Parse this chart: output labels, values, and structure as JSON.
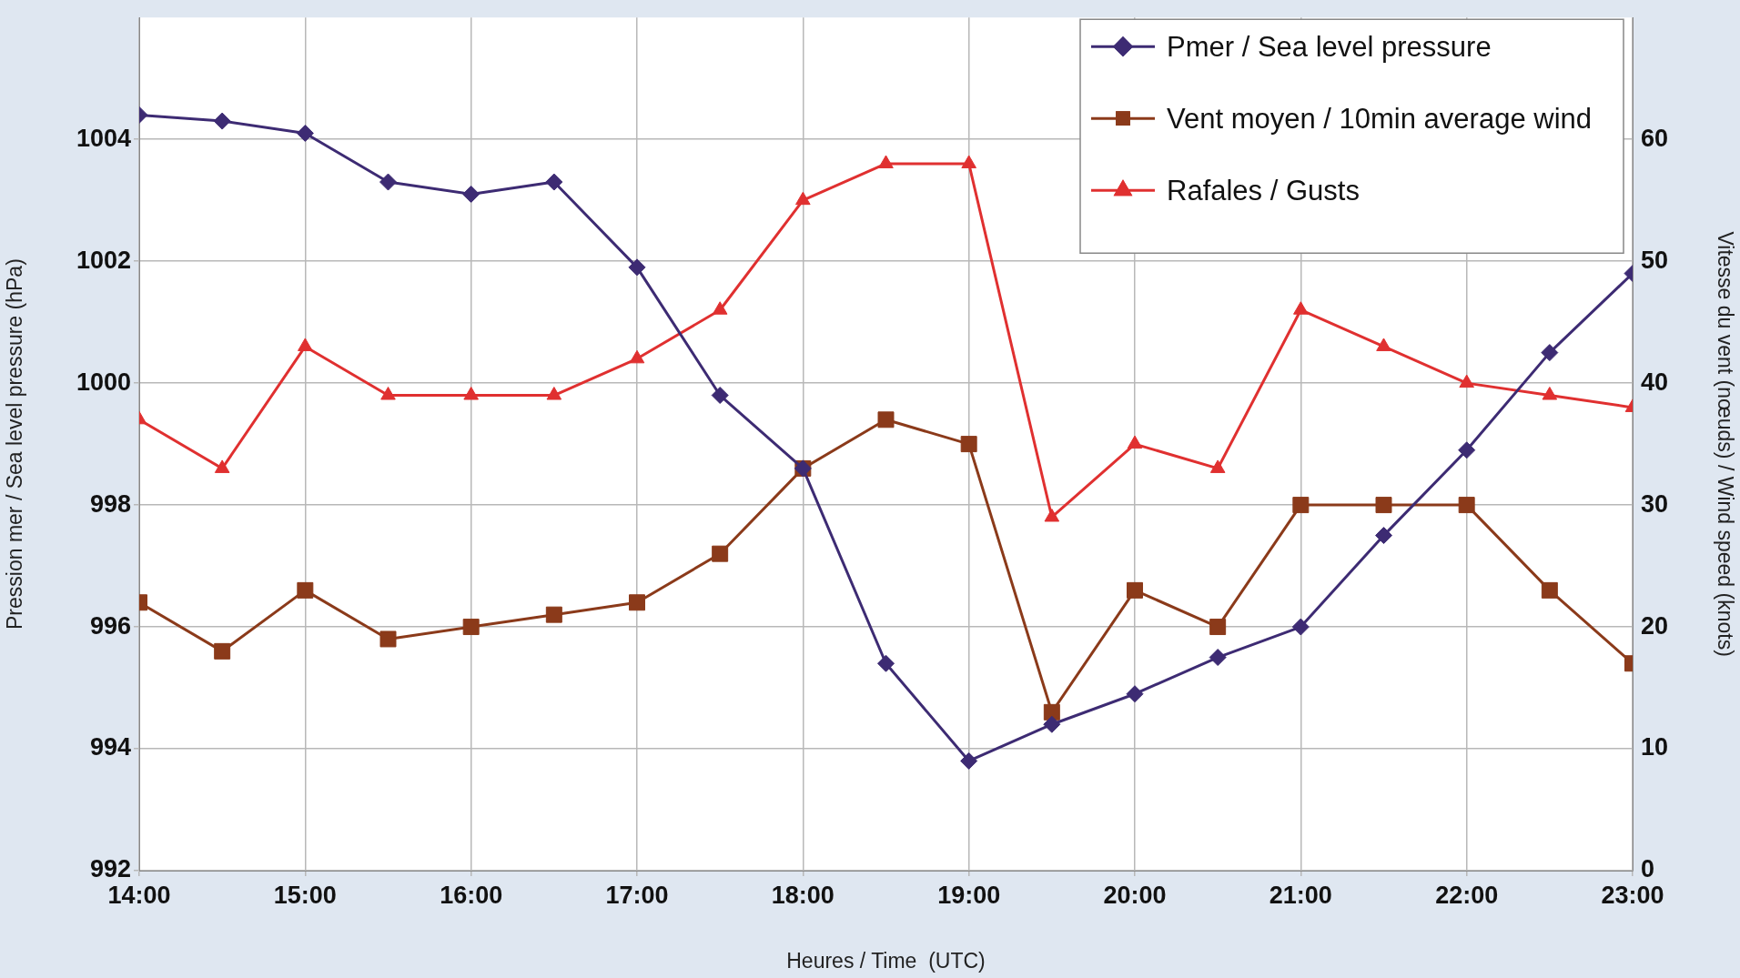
{
  "chart_data": {
    "type": "line",
    "xlabel": "Heures / Time  (UTC)",
    "ylabel": "Pression mer / Sea level pressure (hPa)",
    "y2label": "Vitesse du vent (nœuds) / Wind speed (knots)",
    "x": [
      14,
      14.5,
      15,
      15.5,
      16,
      16.5,
      17,
      17.5,
      18,
      18.5,
      19,
      19.5,
      20,
      20.5,
      21,
      21.5,
      22,
      22.5,
      23
    ],
    "xlim": [
      14,
      23
    ],
    "xticks": [
      {
        "value": 14,
        "label": "14:00"
      },
      {
        "value": 15,
        "label": "15:00"
      },
      {
        "value": 16,
        "label": "16:00"
      },
      {
        "value": 17,
        "label": "17:00"
      },
      {
        "value": 18,
        "label": "18:00"
      },
      {
        "value": 19,
        "label": "19:00"
      },
      {
        "value": 20,
        "label": "20:00"
      },
      {
        "value": 21,
        "label": "21:00"
      },
      {
        "value": 22,
        "label": "22:00"
      },
      {
        "value": 23,
        "label": "23:00"
      }
    ],
    "ylim": [
      992,
      1006
    ],
    "yticks": [
      992,
      994,
      996,
      998,
      1000,
      1002,
      1004
    ],
    "y2lim": [
      0,
      70
    ],
    "y2ticks": [
      0,
      10,
      20,
      30,
      40,
      50,
      60
    ],
    "series": [
      {
        "name": "Pmer / Sea level pressure",
        "color": "#3d2b73",
        "marker": "diamond",
        "values": [
          1004.4,
          1004.3,
          1004.1,
          1003.3,
          1003.1,
          1003.3,
          1001.9,
          999.8,
          998.6,
          995.4,
          993.8,
          994.4,
          994.9,
          995.5,
          996.0,
          997.5,
          998.9,
          1000.5,
          1001.8
        ]
      },
      {
        "name": "Vent moyen / 10min average wind",
        "color": "#8b3a1a",
        "marker": "square",
        "axis": "y2",
        "values": [
          22,
          18,
          23,
          19,
          20,
          21,
          22,
          26,
          33,
          37,
          35,
          13,
          23,
          20,
          30,
          30,
          30,
          23,
          17
        ]
      },
      {
        "name": "Rafales / Gusts",
        "color": "#e03030",
        "marker": "triangle",
        "axis": "y2",
        "values": [
          37,
          33,
          43,
          39,
          39,
          39,
          42,
          46,
          55,
          58,
          58,
          29,
          35,
          33,
          46,
          43,
          40,
          39,
          38
        ]
      }
    ],
    "grid": true,
    "legend": "top right",
    "line_style": "solid"
  }
}
